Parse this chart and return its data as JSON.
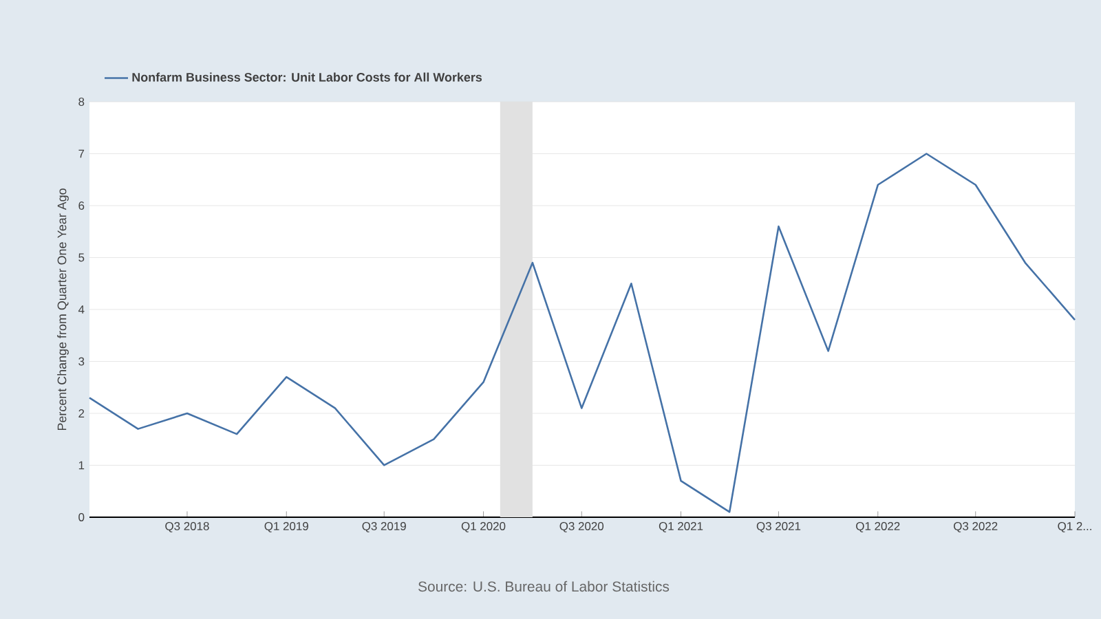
{
  "chart_data": {
    "type": "line",
    "ylabel": "Percent Change from Quarter One Year Ago",
    "x": [
      "2018-01",
      "2018-04",
      "2018-07",
      "2018-10",
      "2019-01",
      "2019-04",
      "2019-07",
      "2019-10",
      "2020-01",
      "2020-04",
      "2020-07",
      "2020-10",
      "2021-01",
      "2021-04",
      "2021-07",
      "2021-10",
      "2022-01",
      "2022-04",
      "2022-07",
      "2022-10",
      "2023-01"
    ],
    "series": [
      {
        "name": "Nonfarm Business Sector: Unit Labor Costs for All Workers",
        "color": "#4572a7",
        "values": [
          2.3,
          1.7,
          2.0,
          1.6,
          2.7,
          2.1,
          1.0,
          1.5,
          2.6,
          4.9,
          2.1,
          4.5,
          0.7,
          0.1,
          5.6,
          3.2,
          6.4,
          7.0,
          6.4,
          4.9,
          3.8
        ]
      }
    ],
    "xlim": [
      "2018-01",
      "2023-01"
    ],
    "xticks": [
      {
        "value": "2018-07",
        "label": "Q3 2018"
      },
      {
        "value": "2019-01",
        "label": "Q1 2019"
      },
      {
        "value": "2019-07",
        "label": "Q3 2019"
      },
      {
        "value": "2020-01",
        "label": "Q1 2020"
      },
      {
        "value": "2020-07",
        "label": "Q3 2020"
      },
      {
        "value": "2021-01",
        "label": "Q1 2021"
      },
      {
        "value": "2021-07",
        "label": "Q3 2021"
      },
      {
        "value": "2022-01",
        "label": "Q1 2022"
      },
      {
        "value": "2022-07",
        "label": "Q3 2022"
      },
      {
        "value": "2023-01",
        "label": "Q1 2..."
      }
    ],
    "ylim": [
      0,
      8
    ],
    "yticks": [
      0,
      1,
      2,
      3,
      4,
      5,
      6,
      7,
      8
    ],
    "bands": [
      {
        "axis": "x",
        "from": "2020-02",
        "to": "2020-04",
        "color": "#e1e1e1"
      }
    ],
    "grid": "y",
    "legend": "top left",
    "annotations": [
      "Source: U.S. Bureau of Labor Statistics"
    ]
  }
}
